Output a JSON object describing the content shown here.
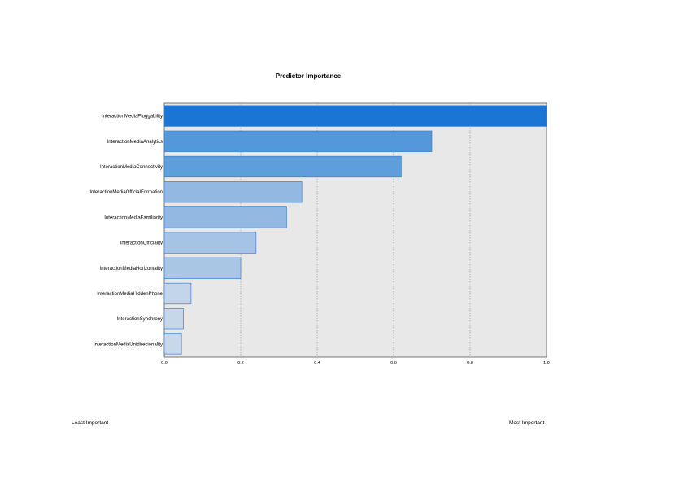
{
  "chart_data": {
    "type": "bar",
    "orientation": "horizontal",
    "title": "Predictor Importance",
    "categories": [
      "InteractionMediaPluggability",
      "InteractionMediaAnalytics",
      "InteractionMediaConnectivity",
      "InteractionMediaOfficialFormation",
      "InteractionMediaFamiliarity",
      "InteractionOfficiality",
      "InteractionMediaHorizontality",
      "InteractionMediaHiddenPhone",
      "InteractionSynchrony",
      "InteractionMediaUnidirecionality"
    ],
    "values": [
      1.0,
      0.7,
      0.62,
      0.36,
      0.32,
      0.24,
      0.2,
      0.07,
      0.05,
      0.045
    ],
    "colors": [
      "#1b75d4",
      "#5497da",
      "#5e9edb",
      "#93b8e1",
      "#93b8e1",
      "#a5c3e4",
      "#a9c6e5",
      "#c2d5ea",
      "#c6d7ea",
      "#c8d8ea"
    ],
    "xlim": [
      0,
      1
    ],
    "xticks": [
      "0.0",
      "0.2",
      "0.4",
      "0.6",
      "0.8",
      "1.0"
    ],
    "grid": true,
    "plot_background": "#e8e8e8",
    "bar_edge_color": "#3d7fd1"
  },
  "legend": {
    "least": "Least Important",
    "most": "Most Important"
  }
}
